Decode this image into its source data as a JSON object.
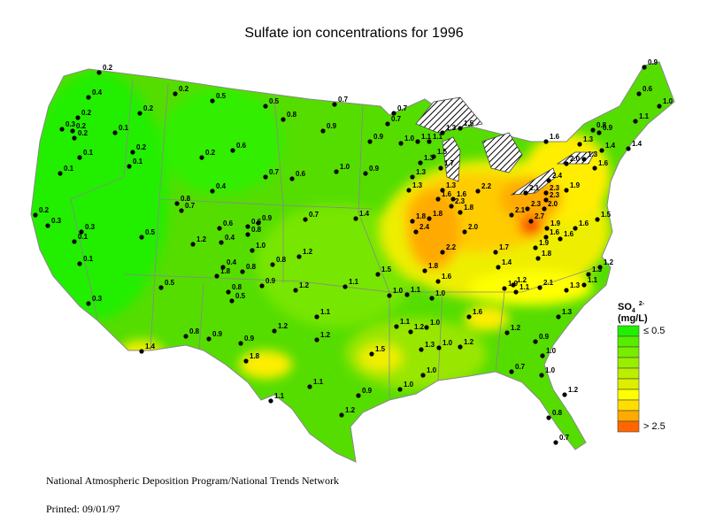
{
  "title": "Sulfate ion concentrations for 1996",
  "legend": {
    "title": "SO",
    "subscript": "4",
    "superscript": "2-",
    "unit": "(mg/L)",
    "labels": [
      "≤ 0.5",
      "> 2.5"
    ],
    "colors": [
      "#22ee00",
      "#55ee00",
      "#77ee00",
      "#99ee00",
      "#bbee00",
      "#ddee00",
      "#ffff00",
      "#ffdd00",
      "#ffaa00",
      "#ff6600"
    ]
  },
  "stations": [
    "0.2",
    "0.4",
    "0.2",
    "0.3",
    "0.2",
    "0.2",
    "0.1",
    "0.2",
    "0.1",
    "0.1",
    "0.2",
    "0.1",
    "0.2",
    "0.5",
    "0.5",
    "0.8",
    "0.7",
    "0.9",
    "0.2",
    "0.6",
    "0.7",
    "0.6",
    "1.0",
    "0.9",
    "0.2",
    "0.3",
    "0.3",
    "0.1",
    "0.1",
    "0.5",
    "0.4",
    "0.8",
    "0.7",
    "1.2",
    "0.6",
    "0.4",
    "0.6",
    "0.9",
    "0.8",
    "1.0",
    "0.7",
    "1.4",
    "1.2",
    "1.8",
    "0.4",
    "0.8",
    "0.8",
    "0.8",
    "0.5",
    "0.9",
    "0.5",
    "0.3",
    "1.2",
    "1.1",
    "1.5",
    "1.0",
    "1.1",
    "0.8",
    "0.9",
    "0.9",
    "1.2",
    "1.4",
    "1.8",
    "1.1",
    "1.2",
    "1.5",
    "1.1",
    "1.1",
    "1.2",
    "0.9",
    "1.1",
    "1.2",
    "1.0",
    "1.0",
    "1.0",
    "1.3",
    "1.0",
    "1.0",
    "1.2",
    "1.6",
    "1.2",
    "0.9",
    "1.0",
    "0.7",
    "1.0",
    "1.2",
    "0.8",
    "0.7",
    "1.3",
    "1.6",
    "2.4",
    "1.8",
    "2.2",
    "1.8",
    "1.8",
    "2.0",
    "1.7",
    "1.4",
    "1.1",
    "1.9",
    "1.2",
    "2.1",
    "1.3",
    "1.1",
    "1.3",
    "1.2",
    "1.9",
    "1.8",
    "1.6",
    "1.6",
    "1.9",
    "1.6",
    "1.5",
    "2.1",
    "2.7",
    "2.3",
    "2.3",
    "2.0",
    "1.9",
    "2.3",
    "2.1",
    "2.4",
    "2.0",
    "1.6",
    "1.3",
    "1.3",
    "1.6",
    "1.4",
    "1.4",
    "0.8",
    "0.9",
    "1.1",
    "0.6",
    "0.9",
    "1.0",
    "1.0",
    "1.1",
    "1.1",
    "1.3",
    "1.5",
    "1.7",
    "1.3",
    "1.3",
    "1.3",
    "1.6",
    "2.2",
    "2.3",
    "1.8",
    "1.5",
    "1.3",
    "0.7",
    "0.7",
    "0.9",
    "1.6"
  ],
  "footer": {
    "program": "National Atmospheric Deposition Program/National Trends Network",
    "printed": "Printed: 09/01/97"
  }
}
